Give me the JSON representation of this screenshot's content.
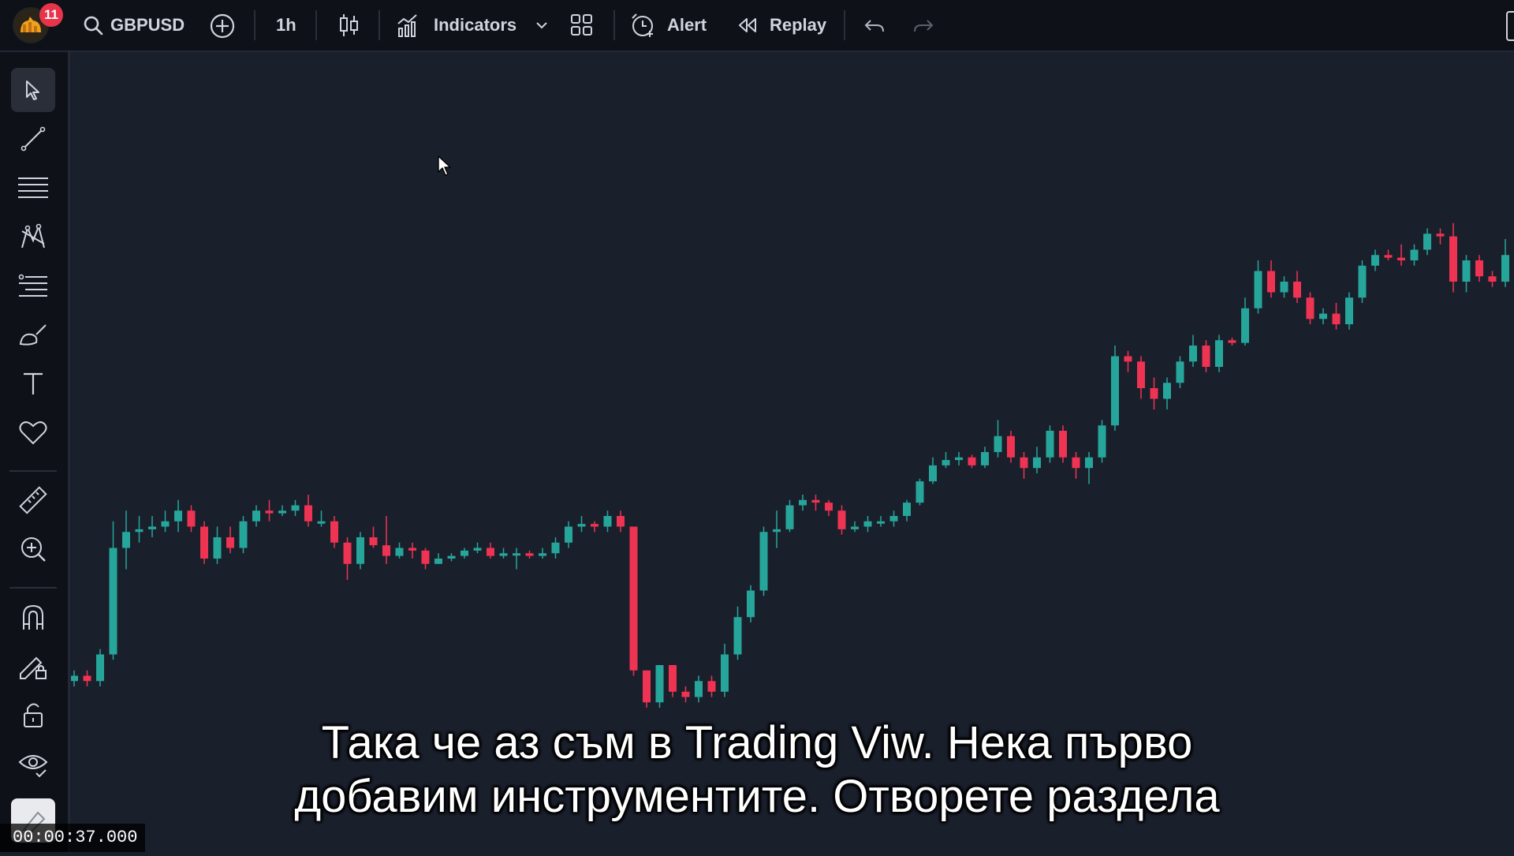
{
  "topbar": {
    "notification_count": "11",
    "symbol": "GBPUSD",
    "interval": "1h",
    "indicators_label": "Indicators",
    "alert_label": "Alert",
    "replay_label": "Replay"
  },
  "sidebar": {
    "tools": [
      "cursor-icon",
      "trend-line-icon",
      "horizontal-lines-icon",
      "pattern-icon",
      "fib-icon",
      "brush-icon",
      "text-icon",
      "heart-icon",
      "ruler-icon",
      "zoom-in-icon",
      "magnet-icon",
      "lock-pencil-icon",
      "lock-icon",
      "eye-icon",
      "eraser-icon"
    ]
  },
  "subtitles": {
    "line1": "Така че аз съм в Trading Viw. Нека първо",
    "line2": "добавим инструментите. Отворете раздела"
  },
  "timestamp": "00:00:37.000",
  "colors": {
    "up": "#26a69a",
    "down": "#ef3352",
    "background": "#1a1f2c"
  },
  "chart_data": {
    "type": "candlestick",
    "candles": [
      [
        0.1,
        0.2,
        0.0,
        0.3
      ],
      [
        0.2,
        0.1,
        0.0,
        0.3
      ],
      [
        0.1,
        0.6,
        0.0,
        0.7
      ],
      [
        0.6,
        2.6,
        0.5,
        3.1
      ],
      [
        2.6,
        2.9,
        2.2,
        3.3
      ],
      [
        2.9,
        2.95,
        2.7,
        3.2
      ],
      [
        2.95,
        3.0,
        2.8,
        3.2
      ],
      [
        3.0,
        3.1,
        2.9,
        3.3
      ],
      [
        3.1,
        3.3,
        2.9,
        3.5
      ],
      [
        3.3,
        3.0,
        2.9,
        3.4
      ],
      [
        3.0,
        2.4,
        2.3,
        3.1
      ],
      [
        2.4,
        2.8,
        2.3,
        3.0
      ],
      [
        2.8,
        2.6,
        2.5,
        3.0
      ],
      [
        2.6,
        3.1,
        2.5,
        3.2
      ],
      [
        3.1,
        3.3,
        3.0,
        3.4
      ],
      [
        3.3,
        3.25,
        3.1,
        3.5
      ],
      [
        3.25,
        3.3,
        3.2,
        3.4
      ],
      [
        3.3,
        3.4,
        3.2,
        3.5
      ],
      [
        3.4,
        3.1,
        3.0,
        3.6
      ],
      [
        3.1,
        3.1,
        3.0,
        3.3
      ],
      [
        3.1,
        2.7,
        2.6,
        3.2
      ],
      [
        2.7,
        2.3,
        2.0,
        2.8
      ],
      [
        2.3,
        2.8,
        2.2,
        2.9
      ],
      [
        2.8,
        2.65,
        2.6,
        3.0
      ],
      [
        2.65,
        2.45,
        2.3,
        3.2
      ],
      [
        2.45,
        2.6,
        2.4,
        2.7
      ],
      [
        2.6,
        2.55,
        2.4,
        2.7
      ],
      [
        2.55,
        2.3,
        2.2,
        2.6
      ],
      [
        2.3,
        2.4,
        2.3,
        2.5
      ],
      [
        2.4,
        2.45,
        2.35,
        2.5
      ],
      [
        2.45,
        2.55,
        2.4,
        2.6
      ],
      [
        2.55,
        2.6,
        2.5,
        2.7
      ],
      [
        2.6,
        2.45,
        2.4,
        2.7
      ],
      [
        2.45,
        2.5,
        2.4,
        2.6
      ],
      [
        2.5,
        2.5,
        2.2,
        2.6
      ],
      [
        2.5,
        2.45,
        2.4,
        2.55
      ],
      [
        2.45,
        2.5,
        2.4,
        2.6
      ],
      [
        2.5,
        2.7,
        2.4,
        2.8
      ],
      [
        2.7,
        3.0,
        2.6,
        3.1
      ],
      [
        3.0,
        3.05,
        2.9,
        3.2
      ],
      [
        3.05,
        3.0,
        2.9,
        3.1
      ],
      [
        3.0,
        3.2,
        2.9,
        3.3
      ],
      [
        3.2,
        3.0,
        2.9,
        3.3
      ],
      [
        3.0,
        0.3,
        0.2,
        3.0
      ],
      [
        0.3,
        -0.3,
        -0.4,
        0.3
      ],
      [
        -0.3,
        0.4,
        -0.4,
        0.4
      ],
      [
        0.4,
        -0.1,
        -0.2,
        0.4
      ],
      [
        -0.1,
        -0.2,
        -0.3,
        0.0
      ],
      [
        -0.2,
        0.1,
        -0.3,
        0.2
      ],
      [
        0.1,
        -0.1,
        -0.2,
        0.2
      ],
      [
        -0.1,
        0.6,
        -0.2,
        0.8
      ],
      [
        0.6,
        1.3,
        0.5,
        1.5
      ],
      [
        1.3,
        1.8,
        1.2,
        1.9
      ],
      [
        1.8,
        2.9,
        1.7,
        3.0
      ],
      [
        2.9,
        2.95,
        2.6,
        3.3
      ],
      [
        2.95,
        3.4,
        2.9,
        3.5
      ],
      [
        3.4,
        3.5,
        3.3,
        3.6
      ],
      [
        3.5,
        3.45,
        3.3,
        3.6
      ],
      [
        3.45,
        3.3,
        3.2,
        3.5
      ],
      [
        3.3,
        2.95,
        2.85,
        3.4
      ],
      [
        2.95,
        3.0,
        2.9,
        3.1
      ],
      [
        3.0,
        3.1,
        2.9,
        3.2
      ],
      [
        3.1,
        3.1,
        3.0,
        3.2
      ],
      [
        3.1,
        3.2,
        3.0,
        3.3
      ],
      [
        3.2,
        3.45,
        3.1,
        3.5
      ],
      [
        3.45,
        3.85,
        3.4,
        3.9
      ],
      [
        3.85,
        4.15,
        3.8,
        4.3
      ],
      [
        4.15,
        4.25,
        4.1,
        4.4
      ],
      [
        4.25,
        4.3,
        4.15,
        4.4
      ],
      [
        4.3,
        4.15,
        4.1,
        4.35
      ],
      [
        4.15,
        4.4,
        4.1,
        4.5
      ],
      [
        4.4,
        4.7,
        4.3,
        5.0
      ],
      [
        4.7,
        4.3,
        4.2,
        4.8
      ],
      [
        4.3,
        4.1,
        3.9,
        4.4
      ],
      [
        4.1,
        4.3,
        4.0,
        4.5
      ],
      [
        4.3,
        4.8,
        4.2,
        4.9
      ],
      [
        4.8,
        4.3,
        4.2,
        4.9
      ],
      [
        4.3,
        4.1,
        3.9,
        4.4
      ],
      [
        4.1,
        4.3,
        3.8,
        4.4
      ],
      [
        4.3,
        4.9,
        4.2,
        5.0
      ],
      [
        4.9,
        6.2,
        4.8,
        6.4
      ],
      [
        6.2,
        6.1,
        5.9,
        6.3
      ],
      [
        6.1,
        5.6,
        5.4,
        6.2
      ],
      [
        5.6,
        5.4,
        5.2,
        5.8
      ],
      [
        5.4,
        5.7,
        5.2,
        5.8
      ],
      [
        5.7,
        6.1,
        5.6,
        6.2
      ],
      [
        6.1,
        6.4,
        6.0,
        6.6
      ],
      [
        6.4,
        6.0,
        5.9,
        6.5
      ],
      [
        6.0,
        6.5,
        5.9,
        6.6
      ],
      [
        6.5,
        6.45,
        6.4,
        6.55
      ],
      [
        6.45,
        7.1,
        6.4,
        7.3
      ],
      [
        7.1,
        7.8,
        7.0,
        8.0
      ],
      [
        7.8,
        7.4,
        7.3,
        8.0
      ],
      [
        7.4,
        7.6,
        7.3,
        7.7
      ],
      [
        7.6,
        7.3,
        7.2,
        7.8
      ],
      [
        7.3,
        6.9,
        6.8,
        7.4
      ],
      [
        6.9,
        7.0,
        6.8,
        7.1
      ],
      [
        7.0,
        6.8,
        6.7,
        7.2
      ],
      [
        6.8,
        7.3,
        6.7,
        7.4
      ],
      [
        7.3,
        7.9,
        7.2,
        8.0
      ],
      [
        7.9,
        8.1,
        7.8,
        8.2
      ],
      [
        8.1,
        8.05,
        8.0,
        8.2
      ],
      [
        8.05,
        8.0,
        7.9,
        8.3
      ],
      [
        8.0,
        8.2,
        7.9,
        8.3
      ],
      [
        8.2,
        8.5,
        8.1,
        8.6
      ],
      [
        8.5,
        8.45,
        8.3,
        8.6
      ],
      [
        8.45,
        7.6,
        7.4,
        8.7
      ],
      [
        7.6,
        8.0,
        7.4,
        8.1
      ],
      [
        8.0,
        7.7,
        7.6,
        8.1
      ],
      [
        7.7,
        7.6,
        7.5,
        7.8
      ],
      [
        7.6,
        8.1,
        7.5,
        8.4
      ],
      [
        8.1,
        8.0,
        7.9,
        8.2
      ],
      [
        8.0,
        8.0,
        7.9,
        8.1
      ],
      [
        8.0,
        8.0,
        7.9,
        8.1
      ]
    ]
  }
}
